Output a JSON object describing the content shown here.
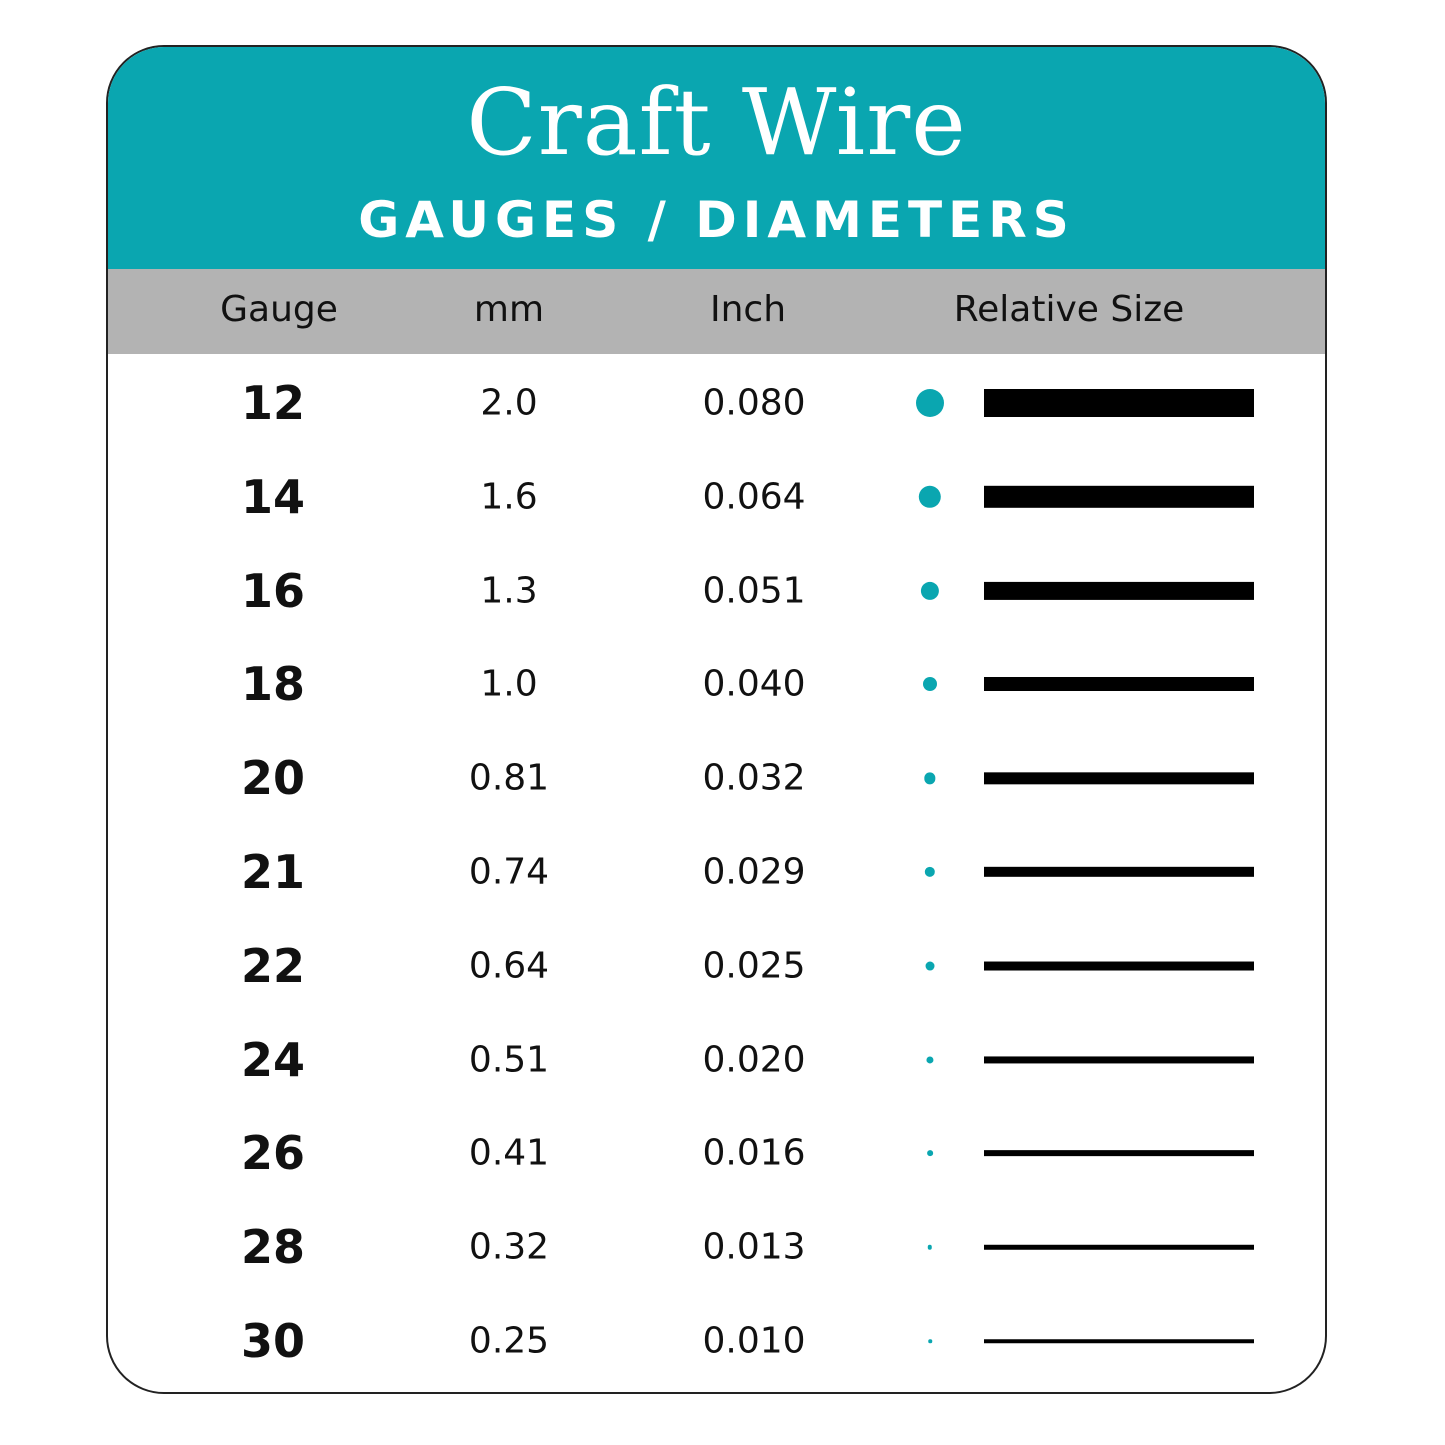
{
  "header": {
    "title": "Craft Wire",
    "subtitle": "GAUGES / DIAMETERS"
  },
  "colors": {
    "accent": "#0aa6b0",
    "header_band": "#b3b3b3",
    "bar": "#000000"
  },
  "chart_data": {
    "type": "table",
    "columns": [
      "Gauge",
      "mm",
      "Inch",
      "Relative Size"
    ],
    "rows": [
      {
        "gauge": "12",
        "mm": "2.0",
        "inch": "0.080"
      },
      {
        "gauge": "14",
        "mm": "1.6",
        "inch": "0.064"
      },
      {
        "gauge": "16",
        "mm": "1.3",
        "inch": "0.051"
      },
      {
        "gauge": "18",
        "mm": "1.0",
        "inch": "0.040"
      },
      {
        "gauge": "20",
        "mm": "0.81",
        "inch": "0.032"
      },
      {
        "gauge": "21",
        "mm": "0.74",
        "inch": "0.029"
      },
      {
        "gauge": "22",
        "mm": "0.64",
        "inch": "0.025"
      },
      {
        "gauge": "24",
        "mm": "0.51",
        "inch": "0.020"
      },
      {
        "gauge": "26",
        "mm": "0.41",
        "inch": "0.016"
      },
      {
        "gauge": "28",
        "mm": "0.32",
        "inch": "0.013"
      },
      {
        "gauge": "30",
        "mm": "0.25",
        "inch": "0.010"
      }
    ]
  }
}
